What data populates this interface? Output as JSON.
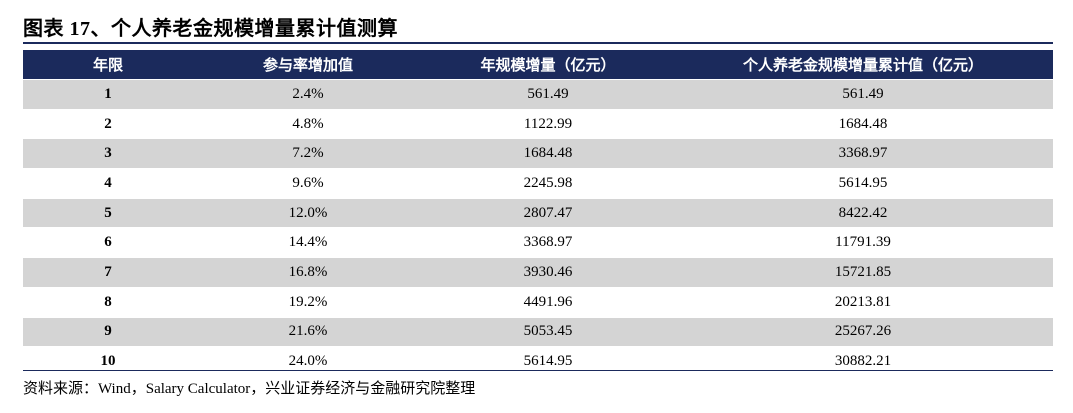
{
  "title": "图表 17、个人养老金规模增量累计值测算",
  "table": {
    "headers": [
      "年限",
      "参与率增加值",
      "年规模增量（亿元）",
      "个人养老金规模增量累计值（亿元）"
    ],
    "rows": [
      [
        "1",
        "2.4%",
        "561.49",
        "561.49"
      ],
      [
        "2",
        "4.8%",
        "1122.99",
        "1684.48"
      ],
      [
        "3",
        "7.2%",
        "1684.48",
        "3368.97"
      ],
      [
        "4",
        "9.6%",
        "2245.98",
        "5614.95"
      ],
      [
        "5",
        "12.0%",
        "2807.47",
        "8422.42"
      ],
      [
        "6",
        "14.4%",
        "3368.97",
        "11791.39"
      ],
      [
        "7",
        "16.8%",
        "3930.46",
        "15721.85"
      ],
      [
        "8",
        "19.2%",
        "4491.96",
        "20213.81"
      ],
      [
        "9",
        "21.6%",
        "5053.45",
        "25267.26"
      ],
      [
        "10",
        "24.0%",
        "5614.95",
        "30882.21"
      ]
    ]
  },
  "source": "资料来源：Wind，Salary Calculator，兴业证券经济与金融研究院整理",
  "colors": {
    "header_bg": "#1b2a5c",
    "stripe": "#d4d4d4"
  }
}
